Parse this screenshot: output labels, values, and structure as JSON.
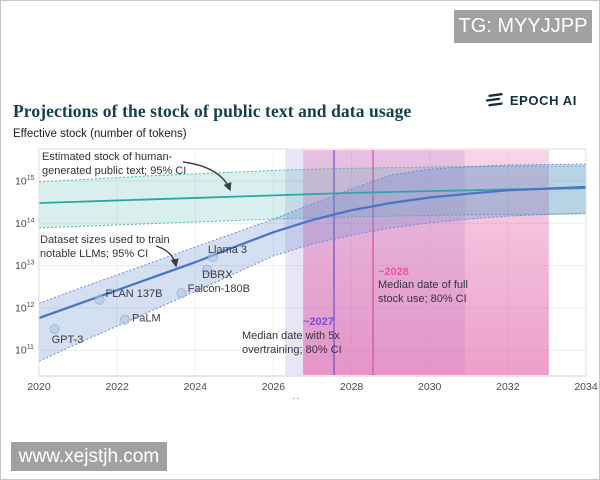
{
  "watermarks": {
    "top": "TG: MYYJJPP",
    "bottom": "www.xejstjh.com"
  },
  "header": {
    "title": "Projections of the stock of public text and data usage",
    "brand": "EPOCH AI"
  },
  "axis_title": "Effective stock (number of tokens)",
  "footer_dots": "..",
  "chart_data": {
    "type": "line",
    "title": "Projections of the stock of public text and data usage",
    "ylabel": "Effective stock (number of tokens)",
    "y_scale": "log10",
    "grid": true,
    "legend_position": "none",
    "x_range": [
      2020,
      2034
    ],
    "y_log_range": [
      10.4,
      15.76
    ],
    "x_ticks": [
      2020,
      2022,
      2024,
      2026,
      2028,
      2030,
      2032,
      2034
    ],
    "y_ticks_exp": [
      11,
      12,
      13,
      14,
      15
    ],
    "x_years": [
      2020,
      2021,
      2022,
      2023,
      2024,
      2025,
      2026,
      2027,
      2028,
      2029,
      2030,
      2031,
      2032,
      2033,
      2034
    ],
    "series": {
      "human_text": {
        "name": "Estimated stock of human-generated public text",
        "color": "#2aa7a0",
        "band_fill": "rgba(58,176,168,0.20)",
        "edge_color": "#44b3ab",
        "median": [
          14.48,
          14.51,
          14.54,
          14.57,
          14.6,
          14.63,
          14.66,
          14.69,
          14.72,
          14.74,
          14.76,
          14.78,
          14.8,
          14.815,
          14.83
        ],
        "ci_upper": [
          14.98,
          15.03,
          15.08,
          15.13,
          15.17,
          15.21,
          15.25,
          15.28,
          15.3,
          15.315,
          15.33,
          15.34,
          15.345,
          15.35,
          15.355
        ],
        "ci_lower": [
          13.89,
          13.925,
          13.96,
          13.995,
          14.03,
          14.065,
          14.1,
          14.125,
          14.15,
          14.17,
          14.185,
          14.2,
          14.21,
          14.215,
          14.22
        ]
      },
      "dataset_sizes": {
        "name": "Dataset sizes used to train notable LLMs",
        "color": "#4574c8",
        "band_fill": "rgba(100,140,210,0.28)",
        "edge_color": "#6e85d6",
        "median": [
          11.76,
          12.09,
          12.42,
          12.75,
          13.08,
          13.44,
          13.79,
          14.08,
          14.31,
          14.48,
          14.61,
          14.7,
          14.78,
          14.82,
          14.86
        ],
        "ci_upper": [
          12.11,
          12.45,
          12.78,
          13.11,
          13.44,
          13.77,
          14.1,
          14.46,
          14.81,
          15.14,
          15.28,
          15.34,
          15.38,
          15.39,
          15.4
        ],
        "ci_lower": [
          10.74,
          11.16,
          11.57,
          11.98,
          12.39,
          12.81,
          13.23,
          13.51,
          13.72,
          13.89,
          14.01,
          14.1,
          14.17,
          14.21,
          14.24
        ]
      }
    },
    "scatter": [
      {
        "label": "GPT-3",
        "year": 2020.4,
        "log10_tokens": 11.5,
        "label_dx": -3,
        "label_dy": 14
      },
      {
        "label": "FLAN 137B",
        "year": 2021.55,
        "log10_tokens": 12.19,
        "label_dx": 6,
        "label_dy": -3
      },
      {
        "label": "PaLM",
        "year": 2022.2,
        "log10_tokens": 11.72,
        "label_dx": 7,
        "label_dy": 2
      },
      {
        "label": "Falcon-180B",
        "year": 2023.65,
        "log10_tokens": 12.35,
        "label_dx": 6,
        "label_dy": -1
      },
      {
        "label": "DBRX",
        "year": 2024.3,
        "log10_tokens": 12.9,
        "label_dx": -5,
        "label_dy": 8
      },
      {
        "label": "Llama 3",
        "year": 2024.45,
        "log10_tokens": 13.2,
        "label_dx": -5,
        "label_dy": -4
      }
    ],
    "regions": [
      {
        "id": "overtraining",
        "name": "Median date with 5x overtraining; 80% CI",
        "x0": 2026.3,
        "x1": 2030.9,
        "median_x": 2027.55,
        "median_label": "~2027",
        "fill": "rgba(122,95,208,0.17)",
        "median_color": "#7450cc"
      },
      {
        "id": "full_stock",
        "name": "Median date of full stock use; 80% CI",
        "x0": 2026.76,
        "x1": 2033.05,
        "median_x": 2028.55,
        "median_label": "~2028",
        "fill_base": "224,96,168",
        "fill_alpha_top": 0.26,
        "fill_alpha_bottom": 0.6,
        "median_color": "#de4f9e"
      }
    ],
    "annotations": [
      {
        "id": "stock",
        "lines": [
          "Estimated stock of human-",
          "generated public text; 95% CI"
        ],
        "arrow": [
          182,
          161,
          220,
          166,
          229,
          189
        ]
      },
      {
        "id": "datasets",
        "lines": [
          "Dataset sizes used to train",
          "notable LLMs; 95% CI"
        ],
        "arrow": [
          155,
          245,
          172,
          250,
          175,
          265
        ]
      },
      {
        "id": "overtrain",
        "year_label": "~2027",
        "lines": [
          "Median date with 5x",
          "overtraining; 80% CI"
        ]
      },
      {
        "id": "fullstock",
        "year_label": "~2028",
        "lines": [
          "Median date of full",
          "stock use; 80% CI"
        ]
      }
    ]
  }
}
